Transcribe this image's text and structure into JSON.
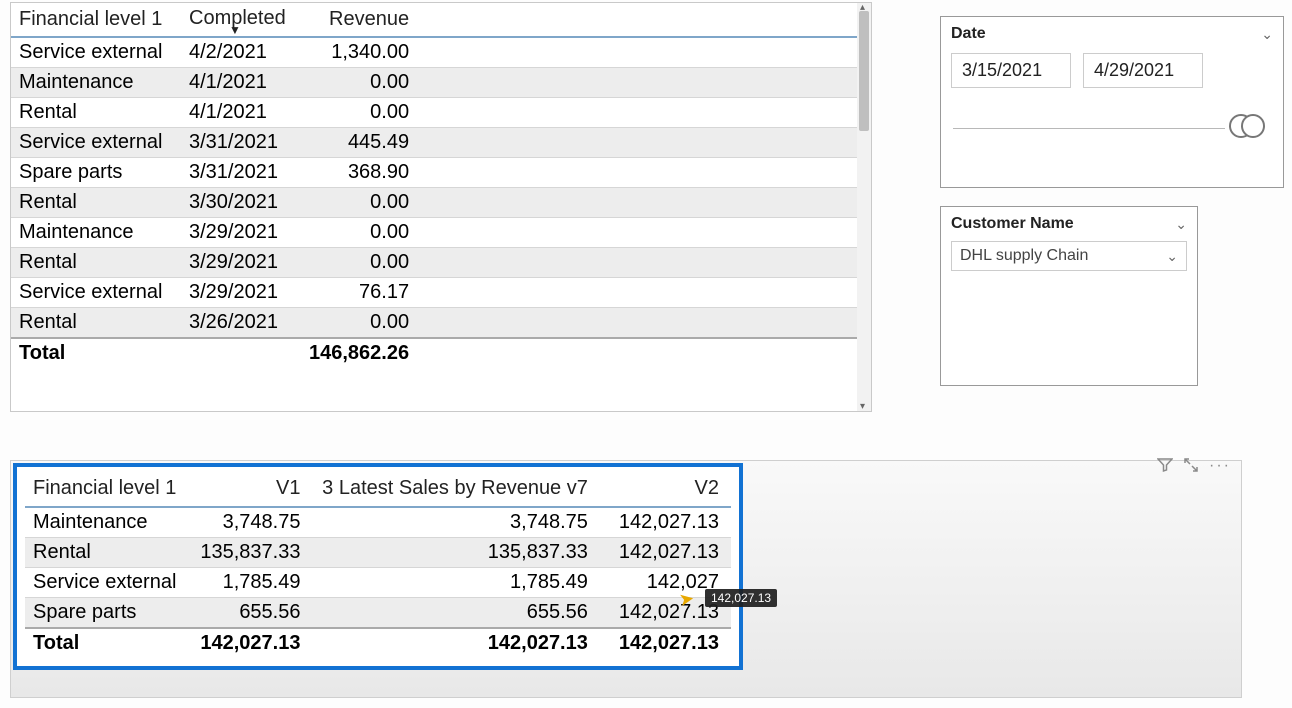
{
  "table1": {
    "columns": [
      "Financial level 1",
      "Completed",
      "Revenue"
    ],
    "sorted_column_index": 1,
    "rows": [
      {
        "fin": "Service external",
        "date": "4/2/2021",
        "rev": "1,340.00",
        "alt": false
      },
      {
        "fin": "Maintenance",
        "date": "4/1/2021",
        "rev": "0.00",
        "alt": true
      },
      {
        "fin": "Rental",
        "date": "4/1/2021",
        "rev": "0.00",
        "alt": false
      },
      {
        "fin": "Service external",
        "date": "3/31/2021",
        "rev": "445.49",
        "alt": true
      },
      {
        "fin": "Spare parts",
        "date": "3/31/2021",
        "rev": "368.90",
        "alt": false
      },
      {
        "fin": "Rental",
        "date": "3/30/2021",
        "rev": "0.00",
        "alt": true
      },
      {
        "fin": "Maintenance",
        "date": "3/29/2021",
        "rev": "0.00",
        "alt": false
      },
      {
        "fin": "Rental",
        "date": "3/29/2021",
        "rev": "0.00",
        "alt": true
      },
      {
        "fin": "Service external",
        "date": "3/29/2021",
        "rev": "76.17",
        "alt": false
      },
      {
        "fin": "Rental",
        "date": "3/26/2021",
        "rev": "0.00",
        "alt": true
      }
    ],
    "total_label": "Total",
    "total_value": "146,862.26"
  },
  "date_slicer": {
    "title": "Date",
    "start": "3/15/2021",
    "end": "4/29/2021"
  },
  "customer_slicer": {
    "title": "Customer Name",
    "selected": "DHL supply Chain"
  },
  "table2": {
    "columns": [
      "Financial level 1",
      "V1",
      "3 Latest Sales by Revenue v7",
      "V2"
    ],
    "rows": [
      {
        "fin": "Maintenance",
        "v1": "3,748.75",
        "h": "3,748.75",
        "v2": "142,027.13",
        "alt": false
      },
      {
        "fin": "Rental",
        "v1": "135,837.33",
        "h": "135,837.33",
        "v2": "142,027.13",
        "alt": true
      },
      {
        "fin": "Service external",
        "v1": "1,785.49",
        "h": "1,785.49",
        "v2": "142,027",
        "alt": false
      },
      {
        "fin": "Spare parts",
        "v1": "655.56",
        "h": "655.56",
        "v2": "142,027.13",
        "alt": true
      }
    ],
    "total_label": "Total",
    "total": {
      "v1": "142,027.13",
      "h": "142,027.13",
      "v2": "142,027.13"
    }
  },
  "tooltip_value": "142,027.13",
  "colors": {
    "highlight_border": "#1272d3",
    "header_rule": "#7fa6c9",
    "alt_row": "#ededed"
  }
}
